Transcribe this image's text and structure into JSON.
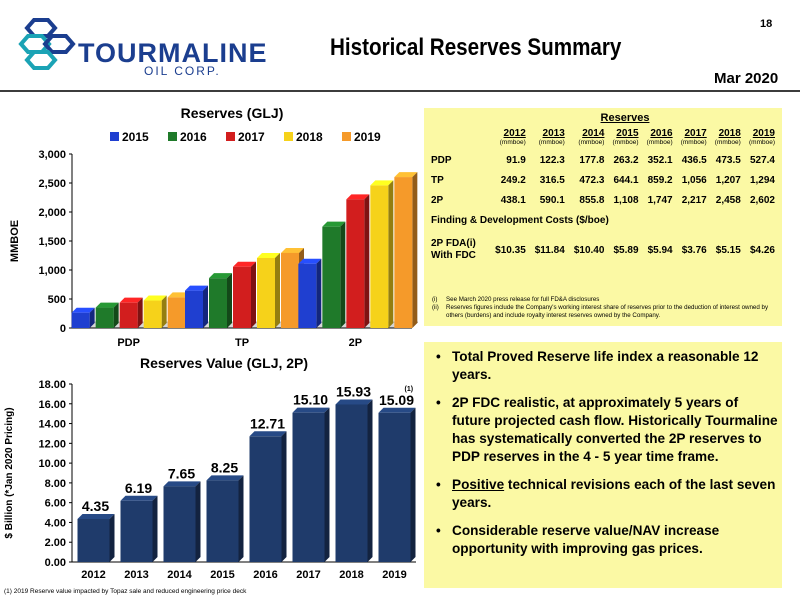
{
  "header": {
    "logo_word": "TOURMALINE",
    "logo_sub": "OIL CORP.",
    "title": "Historical Reserves Summary",
    "page_number": "18",
    "date": "Mar 2020"
  },
  "colors": {
    "brand_blue": "#1b3e8f",
    "brand_teal": "#1ba3b5",
    "box_yellow": "#fbf9a4",
    "series_2015": "#1f3fd0",
    "series_2016": "#1f7a2a",
    "series_2017": "#d21e1e",
    "series_2018": "#f6d21a",
    "series_2019": "#f59a2a",
    "value_bar": "#1f3b6b"
  },
  "chart_data": [
    {
      "type": "bar",
      "title": "Reserves (GLJ)",
      "ylabel": "MMBOE",
      "xlabel": "",
      "categories": [
        "PDP",
        "TP",
        "2P"
      ],
      "yticks": [
        "0",
        "500",
        "1,000",
        "1,500",
        "2,000",
        "2,500",
        "3,000"
      ],
      "ylim": [
        0,
        3000
      ],
      "grid": false,
      "legend": "top",
      "series": [
        {
          "name": "2015",
          "values": [
            263.2,
            644.1,
            1108
          ]
        },
        {
          "name": "2016",
          "values": [
            352.1,
            859.2,
            1747
          ]
        },
        {
          "name": "2017",
          "values": [
            436.5,
            1056,
            2217
          ]
        },
        {
          "name": "2018",
          "values": [
            473.5,
            1207,
            2458
          ]
        },
        {
          "name": "2019",
          "values": [
            527.4,
            1294,
            2602
          ]
        }
      ]
    },
    {
      "type": "bar",
      "title": "Reserves Value (GLJ, 2P)",
      "ylabel": "$ Billion (*Jan 2020 Pricing)",
      "xlabel": "",
      "categories": [
        "2012",
        "2013",
        "2014",
        "2015",
        "2016",
        "2017",
        "2018",
        "2019"
      ],
      "values": [
        4.35,
        6.19,
        7.65,
        8.25,
        12.71,
        15.1,
        15.93,
        15.09
      ],
      "data_labels": [
        "4.35",
        "6.19",
        "7.65",
        "8.25",
        "12.71",
        "15.10",
        "15.93",
        "15.09"
      ],
      "yticks": [
        "0.00",
        "2.00",
        "4.00",
        "6.00",
        "8.00",
        "10.00",
        "12.00",
        "14.00",
        "16.00",
        "18.00"
      ],
      "ylim": [
        0,
        18
      ],
      "grid": false,
      "annotation": "(1)"
    }
  ],
  "reserves_table": {
    "title": "Reserves",
    "years": [
      "2012",
      "2013",
      "2014",
      "2015",
      "2016",
      "2017",
      "2018",
      "2019"
    ],
    "unit": "(mmboe)",
    "rows": [
      {
        "label": "PDP",
        "values": [
          "91.9",
          "122.3",
          "177.8",
          "263.2",
          "352.1",
          "436.5",
          "473.5",
          "527.4"
        ]
      },
      {
        "label": "TP",
        "values": [
          "249.2",
          "316.5",
          "472.3",
          "644.1",
          "859.2",
          "1,056",
          "1,207",
          "1,294"
        ]
      },
      {
        "label": "2P",
        "values": [
          "438.1",
          "590.1",
          "855.8",
          "1,108",
          "1,747",
          "2,217",
          "2,458",
          "2,602"
        ]
      }
    ],
    "fdc_title": "Finding & Development Costs ($/boe)",
    "fdc_label_1": "2P FDA(i)",
    "fdc_label_2": "With FDC",
    "fdc_values": [
      "$10.35",
      "$11.84",
      "$10.40",
      "$5.89",
      "$5.94",
      "$3.76",
      "$5.15",
      "$4.26"
    ],
    "footnotes": [
      {
        "n": "(i)",
        "text": "See March 2020 press release for full FD&A disclosures"
      },
      {
        "n": "(ii)",
        "text": "Reserves figures include the Company's working interest share of reserves prior to the deduction of interest owned by others (burdens) and include royalty interest reserves owned by the Company."
      }
    ]
  },
  "bullets": [
    {
      "pre": "",
      "u": "",
      "post": "Total Proved Reserve life index a reasonable 12 years."
    },
    {
      "pre": "",
      "u": "",
      "post": "2P FDC realistic, at approximately 5 years of future projected cash flow.  Historically Tourmaline has systematically converted the 2P reserves to PDP reserves in the 4 - 5 year time frame."
    },
    {
      "pre": "",
      "u": "Positive",
      "post": " technical revisions each of the last seven years."
    },
    {
      "pre": "",
      "u": "",
      "post": "Considerable reserve value/NAV increase opportunity with improving gas prices."
    }
  ],
  "bottom_note": "(1) 2019 Reserve value impacted by Topaz sale and reduced engineering price deck"
}
